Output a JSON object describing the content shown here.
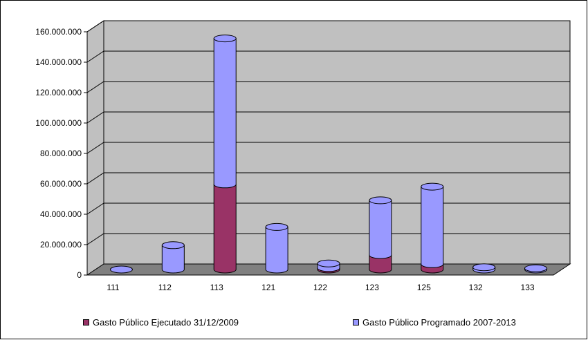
{
  "chart_data": {
    "type": "bar",
    "stacked": true,
    "style": "3d-cylinder",
    "title": "",
    "xlabel": "",
    "ylabel": "",
    "categories": [
      "111",
      "112",
      "113",
      "121",
      "122",
      "123",
      "125",
      "132",
      "133"
    ],
    "series": [
      {
        "name": "Gasto Público Ejecutado 31/12/2009",
        "color": "#993366",
        "values": [
          0,
          0,
          56000000,
          0,
          1000000,
          9500000,
          3500000,
          0,
          0
        ]
      },
      {
        "name": "Gasto Público Programado 2007-2013",
        "color": "#9999ff",
        "values": [
          0,
          16000000,
          96000000,
          28000000,
          3000000,
          36000000,
          51000000,
          1500000,
          800000
        ]
      }
    ],
    "ylim": [
      0,
      160000000
    ],
    "yticks": [
      "0",
      "20.000.000",
      "40.000.000",
      "60.000.000",
      "80.000.000",
      "100.000.000",
      "120.000.000",
      "140.000.000",
      "160.000.000"
    ],
    "ytick_values": [
      0,
      20000000,
      40000000,
      60000000,
      80000000,
      100000000,
      120000000,
      140000000,
      160000000
    ],
    "grid": true,
    "legend_position": "bottom",
    "wall_color": "#c0c0c0",
    "floor_color": "#808080"
  }
}
